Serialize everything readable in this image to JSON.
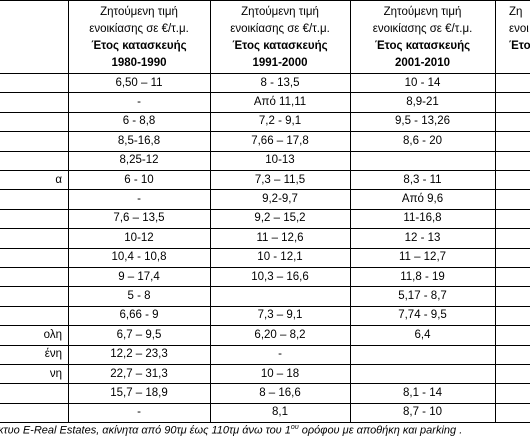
{
  "table": {
    "headers": [
      {
        "lines": [
          "Ζητούμενη τιμή",
          "ενοικίασης σε €/τ.μ.",
          "Έτος κατασκευής",
          "1980-1990"
        ]
      },
      {
        "lines": [
          "Ζητούμενη τιμή",
          "ενοικίασης σε €/τ.μ.",
          "Έτος κατασκευής",
          "1991-2000"
        ]
      },
      {
        "lines": [
          "Ζητούμενη τιμή",
          "ενοικίασης σε €/τ.μ.",
          "Έτος κατασκευής",
          "2001-2010"
        ]
      },
      {
        "lines": [
          "Ζη",
          "ενοι",
          "Έτο"
        ]
      }
    ],
    "rows": [
      [
        null,
        "6,50 – 11",
        "8 - 13,5",
        "10 - 14"
      ],
      [
        null,
        "-",
        "Από 11,11",
        "8,9-21"
      ],
      [
        null,
        "6 - 8,8",
        "7,2 - 9,1",
        "9,5 - 13,26"
      ],
      [
        null,
        "8,5-16,8",
        "7,66 – 17,8",
        "8,6 - 20"
      ],
      [
        null,
        "8,25-12",
        "10-13",
        null
      ],
      [
        "α",
        "6 - 10",
        "7,3 – 11,5",
        "8,3 - 11"
      ],
      [
        null,
        "-",
        "9,2-9,7",
        "Από 9,6"
      ],
      [
        null,
        "7,6 – 13,5",
        "9,2 – 15,2",
        "11-16,8"
      ],
      [
        null,
        "10-12",
        "11 – 12,6",
        "12 - 13"
      ],
      [
        null,
        "10,4 - 10,8",
        "10 - 12,1",
        "11 – 12,7"
      ],
      [
        null,
        "9 – 17,4",
        "10,3 – 16,6",
        "11,8 - 19"
      ],
      [
        null,
        "5 - 8",
        null,
        "5,17 - 8,7"
      ],
      [
        null,
        "6,66 - 9",
        "7,3 – 9,1",
        "7,74 - 9,5"
      ],
      [
        "ολη",
        "6,7 – 9,5",
        "6,20 – 8,2",
        "6,4"
      ],
      [
        "ένη",
        "12,2 – 23,3",
        "-",
        null
      ],
      [
        "νη",
        "22,7 – 31,3",
        "10 – 18",
        null
      ],
      [
        null,
        "15,7 – 18,9",
        "8 – 16,6",
        "8,1 - 14"
      ],
      [
        null,
        "-",
        "8,1",
        "8,7 - 10"
      ]
    ]
  },
  "footer": {
    "before": "κτυο E-Real Estates, ακίνητα από 90τμ έως 110τμ άνω του 1",
    "sup": "ου",
    "after": " ορόφου με αποθήκη και parking ."
  }
}
